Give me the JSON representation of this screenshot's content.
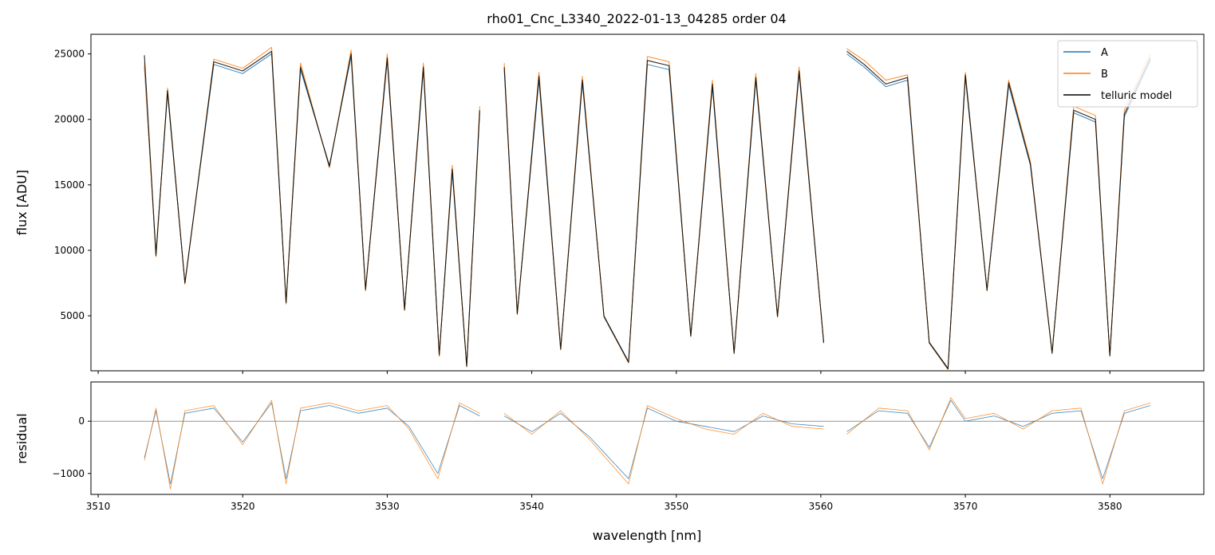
{
  "chart_data": [
    {
      "type": "line",
      "title": "rho01_Cnc_L3340_2022-01-13_04285  order 04",
      "xlabel": "",
      "ylabel": "flux [ADU]",
      "xlim": [
        3509.5,
        3586.5
      ],
      "ylim": [
        800,
        26500
      ],
      "xticks": [
        3510,
        3520,
        3530,
        3540,
        3550,
        3560,
        3570,
        3580
      ],
      "xtick_labels": [],
      "yticks": [
        5000,
        10000,
        15000,
        20000,
        25000
      ],
      "ytick_labels": [
        "5000",
        "10000",
        "15000",
        "20000",
        "25000"
      ],
      "legend": {
        "placement": "top-right",
        "entries": [
          "A",
          "B",
          "telluric model"
        ]
      },
      "segments": [
        [
          3513.2,
          3536.4
        ],
        [
          3538.1,
          3560.2
        ],
        [
          3561.8,
          3582.8
        ]
      ],
      "x": [
        3513.2,
        3514.0,
        3514.8,
        3516.0,
        3518.0,
        3520.0,
        3522.0,
        3523.0,
        3524.0,
        3526.0,
        3527.5,
        3528.5,
        3530.0,
        3531.2,
        3532.5,
        3533.6,
        3534.5,
        3535.5,
        3536.4,
        3538.1,
        3539.0,
        3540.5,
        3542.0,
        3543.5,
        3545.0,
        3546.7,
        3548.0,
        3549.5,
        3551.0,
        3552.5,
        3554.0,
        3555.5,
        3557.0,
        3558.5,
        3560.2,
        3561.8,
        3563.0,
        3564.5,
        3566.0,
        3567.5,
        3568.8,
        3570.0,
        3571.5,
        3573.0,
        3574.5,
        3576.0,
        3577.5,
        3579.0,
        3580.0,
        3581.0,
        3582.8
      ],
      "series": [
        {
          "name": "A",
          "color": "#1f77b4",
          "values": [
            24000,
            9800,
            22000,
            7500,
            24200,
            23500,
            25000,
            6000,
            23800,
            16500,
            24800,
            7000,
            24500,
            5500,
            23800,
            2000,
            16000,
            1200,
            20500,
            23800,
            5200,
            23000,
            2500,
            22800,
            5000,
            1500,
            24200,
            23800,
            3500,
            22500,
            2200,
            23000,
            5000,
            23500,
            3000,
            25000,
            24000,
            22500,
            23000,
            3000,
            1000,
            23200,
            7000,
            22600,
            16500,
            2200,
            20500,
            19800,
            2000,
            20200,
            24500
          ]
        },
        {
          "name": "B",
          "color": "#ff7f0e",
          "values": [
            24300,
            9500,
            22400,
            7400,
            24600,
            23900,
            25500,
            5900,
            24300,
            16300,
            25300,
            6900,
            25000,
            5400,
            24300,
            1900,
            16500,
            1100,
            21000,
            24300,
            5100,
            23600,
            2400,
            23300,
            4900,
            1400,
            24800,
            24400,
            3400,
            23000,
            2100,
            23500,
            4900,
            24000,
            2900,
            25400,
            24500,
            23000,
            23400,
            2900,
            900,
            23600,
            6900,
            23000,
            16800,
            2100,
            21000,
            20300,
            1900,
            20700,
            25000
          ]
        },
        {
          "name": "telluric model",
          "color": "#000000",
          "values": [
            24900,
            9600,
            22200,
            7500,
            24400,
            23700,
            25200,
            6000,
            24000,
            16400,
            25000,
            7000,
            24700,
            5450,
            24000,
            2000,
            16200,
            1150,
            20700,
            24000,
            5150,
            23300,
            2450,
            23000,
            4950,
            1450,
            24500,
            24100,
            3450,
            22700,
            2150,
            23200,
            4950,
            23700,
            2950,
            25200,
            24200,
            22700,
            23200,
            2950,
            950,
            23400,
            6950,
            22800,
            16600,
            2150,
            20700,
            20000,
            1950,
            20400,
            24700
          ]
        }
      ]
    },
    {
      "type": "line",
      "title": "",
      "xlabel": "wavelength [nm]",
      "ylabel": "residual",
      "xlim": [
        3509.5,
        3586.5
      ],
      "ylim": [
        -1400,
        750
      ],
      "xticks": [
        3510,
        3520,
        3530,
        3540,
        3550,
        3560,
        3570,
        3580
      ],
      "xtick_labels": [
        "3510",
        "3520",
        "3530",
        "3540",
        "3550",
        "3560",
        "3570",
        "3580"
      ],
      "yticks": [
        -1000,
        0
      ],
      "ytick_labels": [
        "−1000",
        "0"
      ],
      "hline": 0,
      "segments": [
        [
          3513.2,
          3536.4
        ],
        [
          3538.1,
          3560.2
        ],
        [
          3561.8,
          3582.8
        ]
      ],
      "x": [
        3513.2,
        3514.0,
        3515.0,
        3516.0,
        3518.0,
        3520.0,
        3522.0,
        3523.0,
        3524.0,
        3526.0,
        3528.0,
        3530.0,
        3531.5,
        3533.5,
        3535.0,
        3536.4,
        3538.1,
        3540.0,
        3542.0,
        3544.0,
        3546.7,
        3548.0,
        3550.0,
        3552.0,
        3554.0,
        3556.0,
        3558.0,
        3560.2,
        3561.8,
        3564.0,
        3566.0,
        3567.5,
        3569.0,
        3570.0,
        3572.0,
        3574.0,
        3576.0,
        3578.0,
        3579.5,
        3581.0,
        3582.8
      ],
      "series": [
        {
          "name": "A",
          "color": "#1f77b4",
          "values": [
            -700,
            200,
            -1200,
            150,
            250,
            -400,
            350,
            -1100,
            200,
            300,
            150,
            250,
            -100,
            -1000,
            300,
            100,
            100,
            -200,
            150,
            -300,
            -1100,
            250,
            0,
            -100,
            -200,
            100,
            -50,
            -100,
            -200,
            200,
            150,
            -500,
            400,
            0,
            100,
            -100,
            150,
            200,
            -1100,
            150,
            300
          ]
        },
        {
          "name": "B",
          "color": "#ff7f0e",
          "values": [
            -750,
            250,
            -1300,
            200,
            300,
            -450,
            400,
            -1200,
            250,
            350,
            200,
            300,
            -150,
            -1100,
            350,
            150,
            150,
            -250,
            200,
            -350,
            -1200,
            300,
            50,
            -150,
            -250,
            150,
            -100,
            -150,
            -250,
            250,
            200,
            -550,
            450,
            50,
            150,
            -150,
            200,
            250,
            -1200,
            200,
            350
          ]
        }
      ]
    }
  ]
}
